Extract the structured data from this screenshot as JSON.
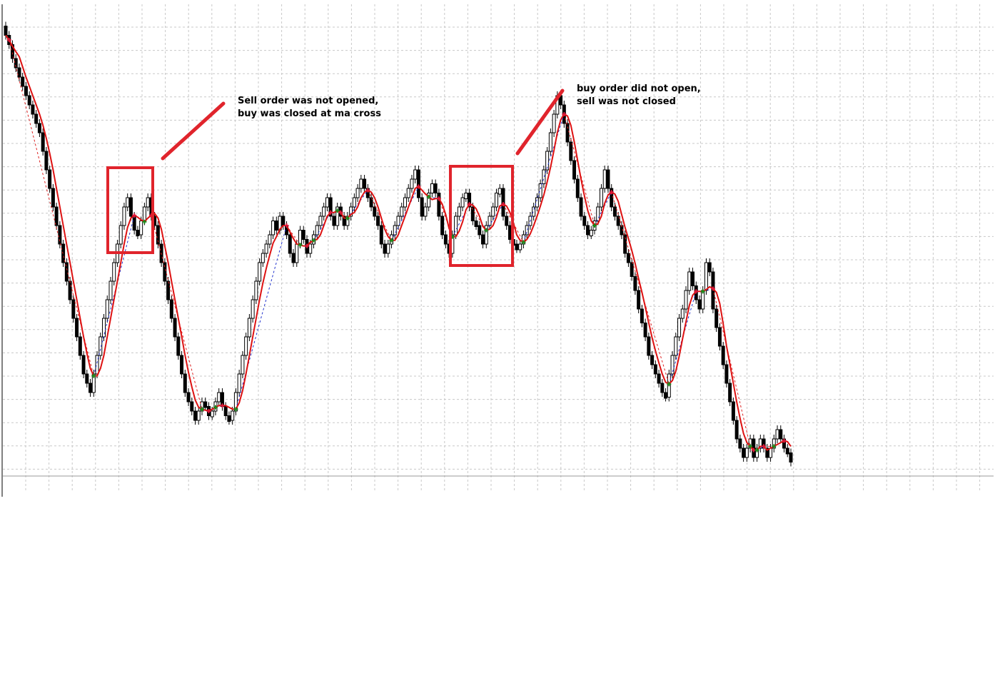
{
  "annotations": [
    {
      "line1": "Sell order was not opened,",
      "line2": "buy was closed at ma cross"
    },
    {
      "line1": "buy order did not open,",
      "line2": "sell was not closed"
    }
  ],
  "colors": {
    "grid": "#c8c8c8",
    "bar": "#000000",
    "moving_average": "#dd1111",
    "highlight_box": "#e0242c",
    "buy_marker": "#1a8a1a",
    "sell_marker": "#dd1a3a",
    "trade_link_buy": "#2233cc",
    "trade_link_sell": "#dd2222"
  },
  "chart_data": {
    "type": "line",
    "style": "renko-bars",
    "grid": true,
    "ylim": [
      0,
      100
    ],
    "bars_close": [
      97,
      95,
      92,
      90,
      88,
      86,
      84,
      82,
      80,
      78,
      76,
      72,
      68,
      64,
      60,
      56,
      52,
      48,
      44,
      40,
      36,
      32,
      28,
      24,
      22,
      20,
      24,
      28,
      32,
      36,
      40,
      44,
      48,
      52,
      56,
      60,
      62,
      58,
      55,
      54,
      57,
      60,
      62,
      58,
      56,
      52,
      48,
      44,
      40,
      36,
      32,
      28,
      24,
      20,
      18,
      16,
      14,
      16,
      18,
      17,
      15,
      16,
      18,
      20,
      17,
      15,
      14,
      16,
      20,
      24,
      28,
      32,
      36,
      40,
      44,
      48,
      50,
      52,
      54,
      57,
      55,
      58,
      56,
      54,
      50,
      48,
      52,
      55,
      53,
      50,
      52,
      54,
      56,
      58,
      60,
      62,
      58,
      56,
      60,
      58,
      56,
      58,
      60,
      62,
      64,
      66,
      64,
      62,
      60,
      58,
      56,
      52,
      50,
      52,
      54,
      56,
      58,
      60,
      62,
      64,
      66,
      68,
      62,
      58,
      60,
      63,
      65,
      63,
      58,
      54,
      52,
      50,
      54,
      58,
      60,
      62,
      63,
      60,
      57,
      56,
      54,
      52,
      56,
      58,
      60,
      63,
      64,
      58,
      56,
      53,
      52,
      51,
      52,
      54,
      56,
      58,
      60,
      62,
      65,
      68,
      72,
      76,
      80,
      84,
      82,
      78,
      74,
      70,
      66,
      62,
      58,
      56,
      54,
      55,
      57,
      60,
      64,
      68,
      64,
      60,
      58,
      56,
      54,
      50,
      48,
      45,
      42,
      38,
      35,
      32,
      28,
      26,
      24,
      22,
      20,
      19,
      24,
      28,
      32,
      36,
      38,
      42,
      46,
      43,
      40,
      38,
      42,
      48,
      46,
      38,
      34,
      30,
      26,
      22,
      18,
      14,
      10,
      8,
      6,
      8,
      10,
      6,
      8,
      10,
      8,
      6,
      8,
      10,
      12,
      10,
      8,
      7,
      5
    ]
  }
}
